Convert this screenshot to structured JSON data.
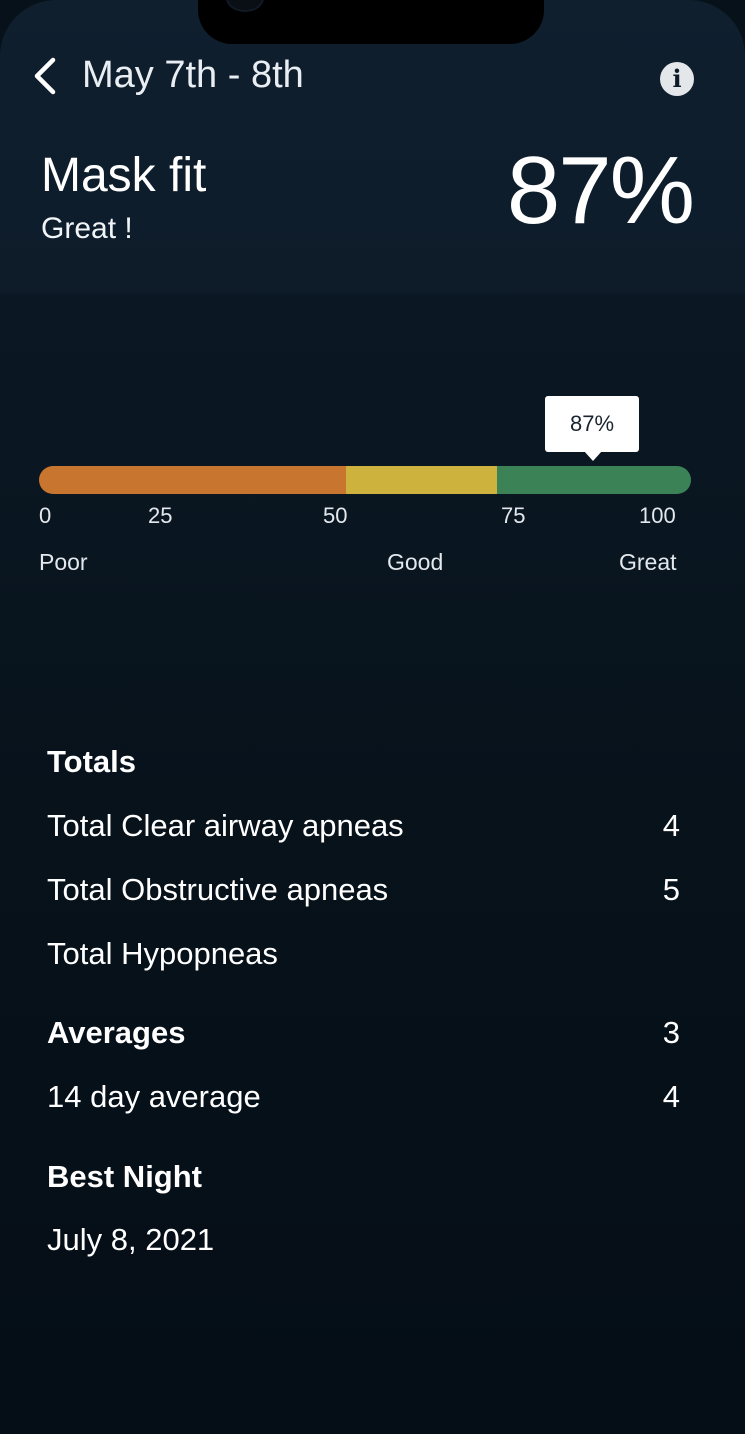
{
  "header": {
    "title": "May 7th - 8th",
    "back_icon": "chevron-left-icon",
    "info_icon": "info-icon",
    "info_glyph": "i"
  },
  "metric": {
    "name": "Mask fit",
    "rating": "Great !",
    "value": "87%"
  },
  "scale": {
    "marker_label": "87%",
    "marker_value": 87,
    "ticks": [
      "0",
      "25",
      "50",
      "75",
      "100"
    ],
    "labels": [
      "Poor",
      "Good",
      "Great"
    ],
    "colors": {
      "poor": "#c8762f",
      "good": "#cdb33d",
      "great": "#3b8357"
    }
  },
  "totals": {
    "heading": "Totals",
    "clear_airway_label": "Total Clear airway apneas",
    "clear_airway_value": "4",
    "obstructive_label": "Total Obstructive apneas",
    "obstructive_value": "5",
    "hypopneas_label": "Total Hypopneas"
  },
  "averages": {
    "heading": "Averages",
    "heading_value": "3",
    "fourteen_day_label": "14 day average",
    "fourteen_day_value": "4"
  },
  "best_night": {
    "heading": "Best Night",
    "date": "July 8, 2021"
  }
}
